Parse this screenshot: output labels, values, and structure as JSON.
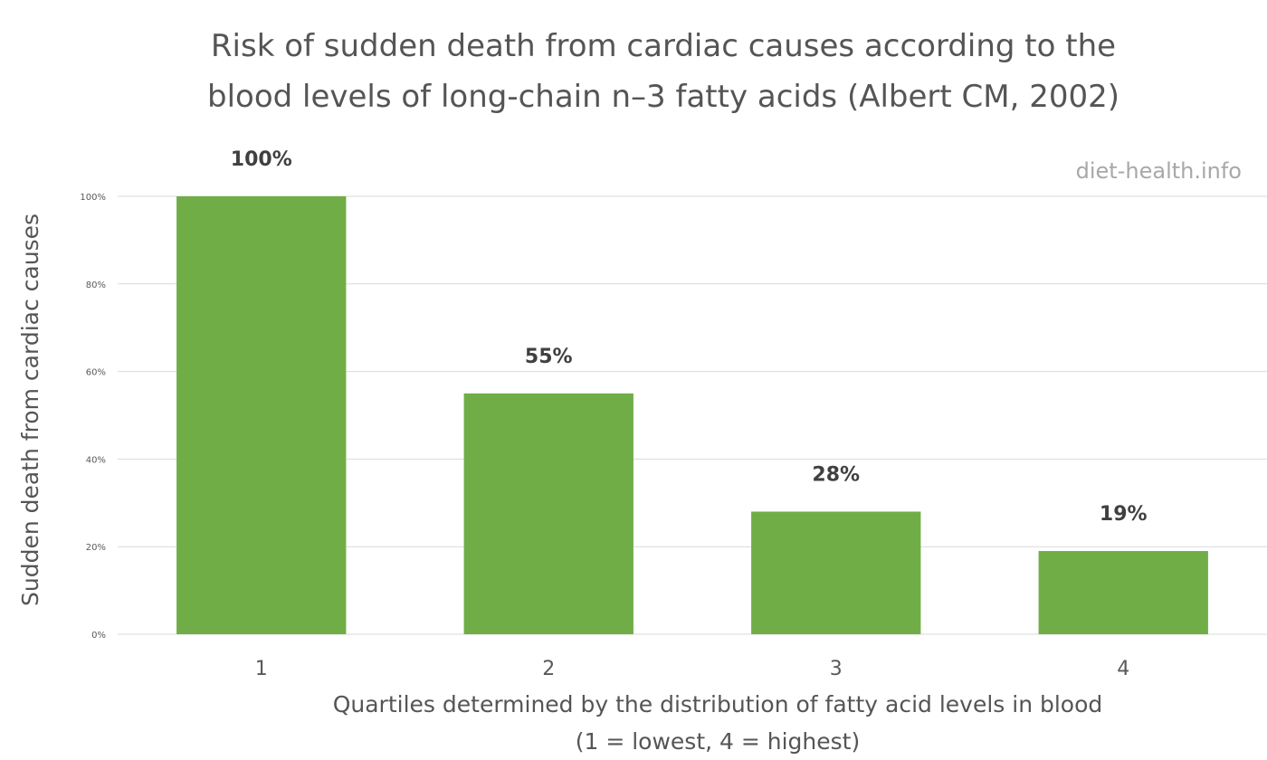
{
  "chart_data": {
    "type": "bar",
    "title": "Risk of sudden death from cardiac causes according to the blood levels of long-chain n–3 fatty acids (Albert CM, 2002)",
    "title_lines": [
      "Risk of sudden death from cardiac causes according to the",
      "blood levels of long-chain n–3 fatty acids (Albert CM, 2002)"
    ],
    "watermark": "diet-health.info",
    "categories": [
      "1",
      "2",
      "3",
      "4"
    ],
    "values": [
      100,
      55,
      28,
      19
    ],
    "data_labels": [
      "100%",
      "55%",
      "28%",
      "19%"
    ],
    "ylabel": "Sudden death from cardiac causes",
    "xlabel": "Quartiles determined by the distribution of fatty acid levels in blood",
    "xlabel_line2": "(1 = lowest, 4 = highest)",
    "ylim": [
      0,
      100
    ],
    "yticks": [
      0,
      20,
      40,
      60,
      80,
      100
    ],
    "ytick_labels": [
      "0%",
      "20%",
      "40%",
      "60%",
      "80%",
      "100%"
    ],
    "grid": true,
    "legend": "none",
    "bar_color": "#70ad47"
  }
}
